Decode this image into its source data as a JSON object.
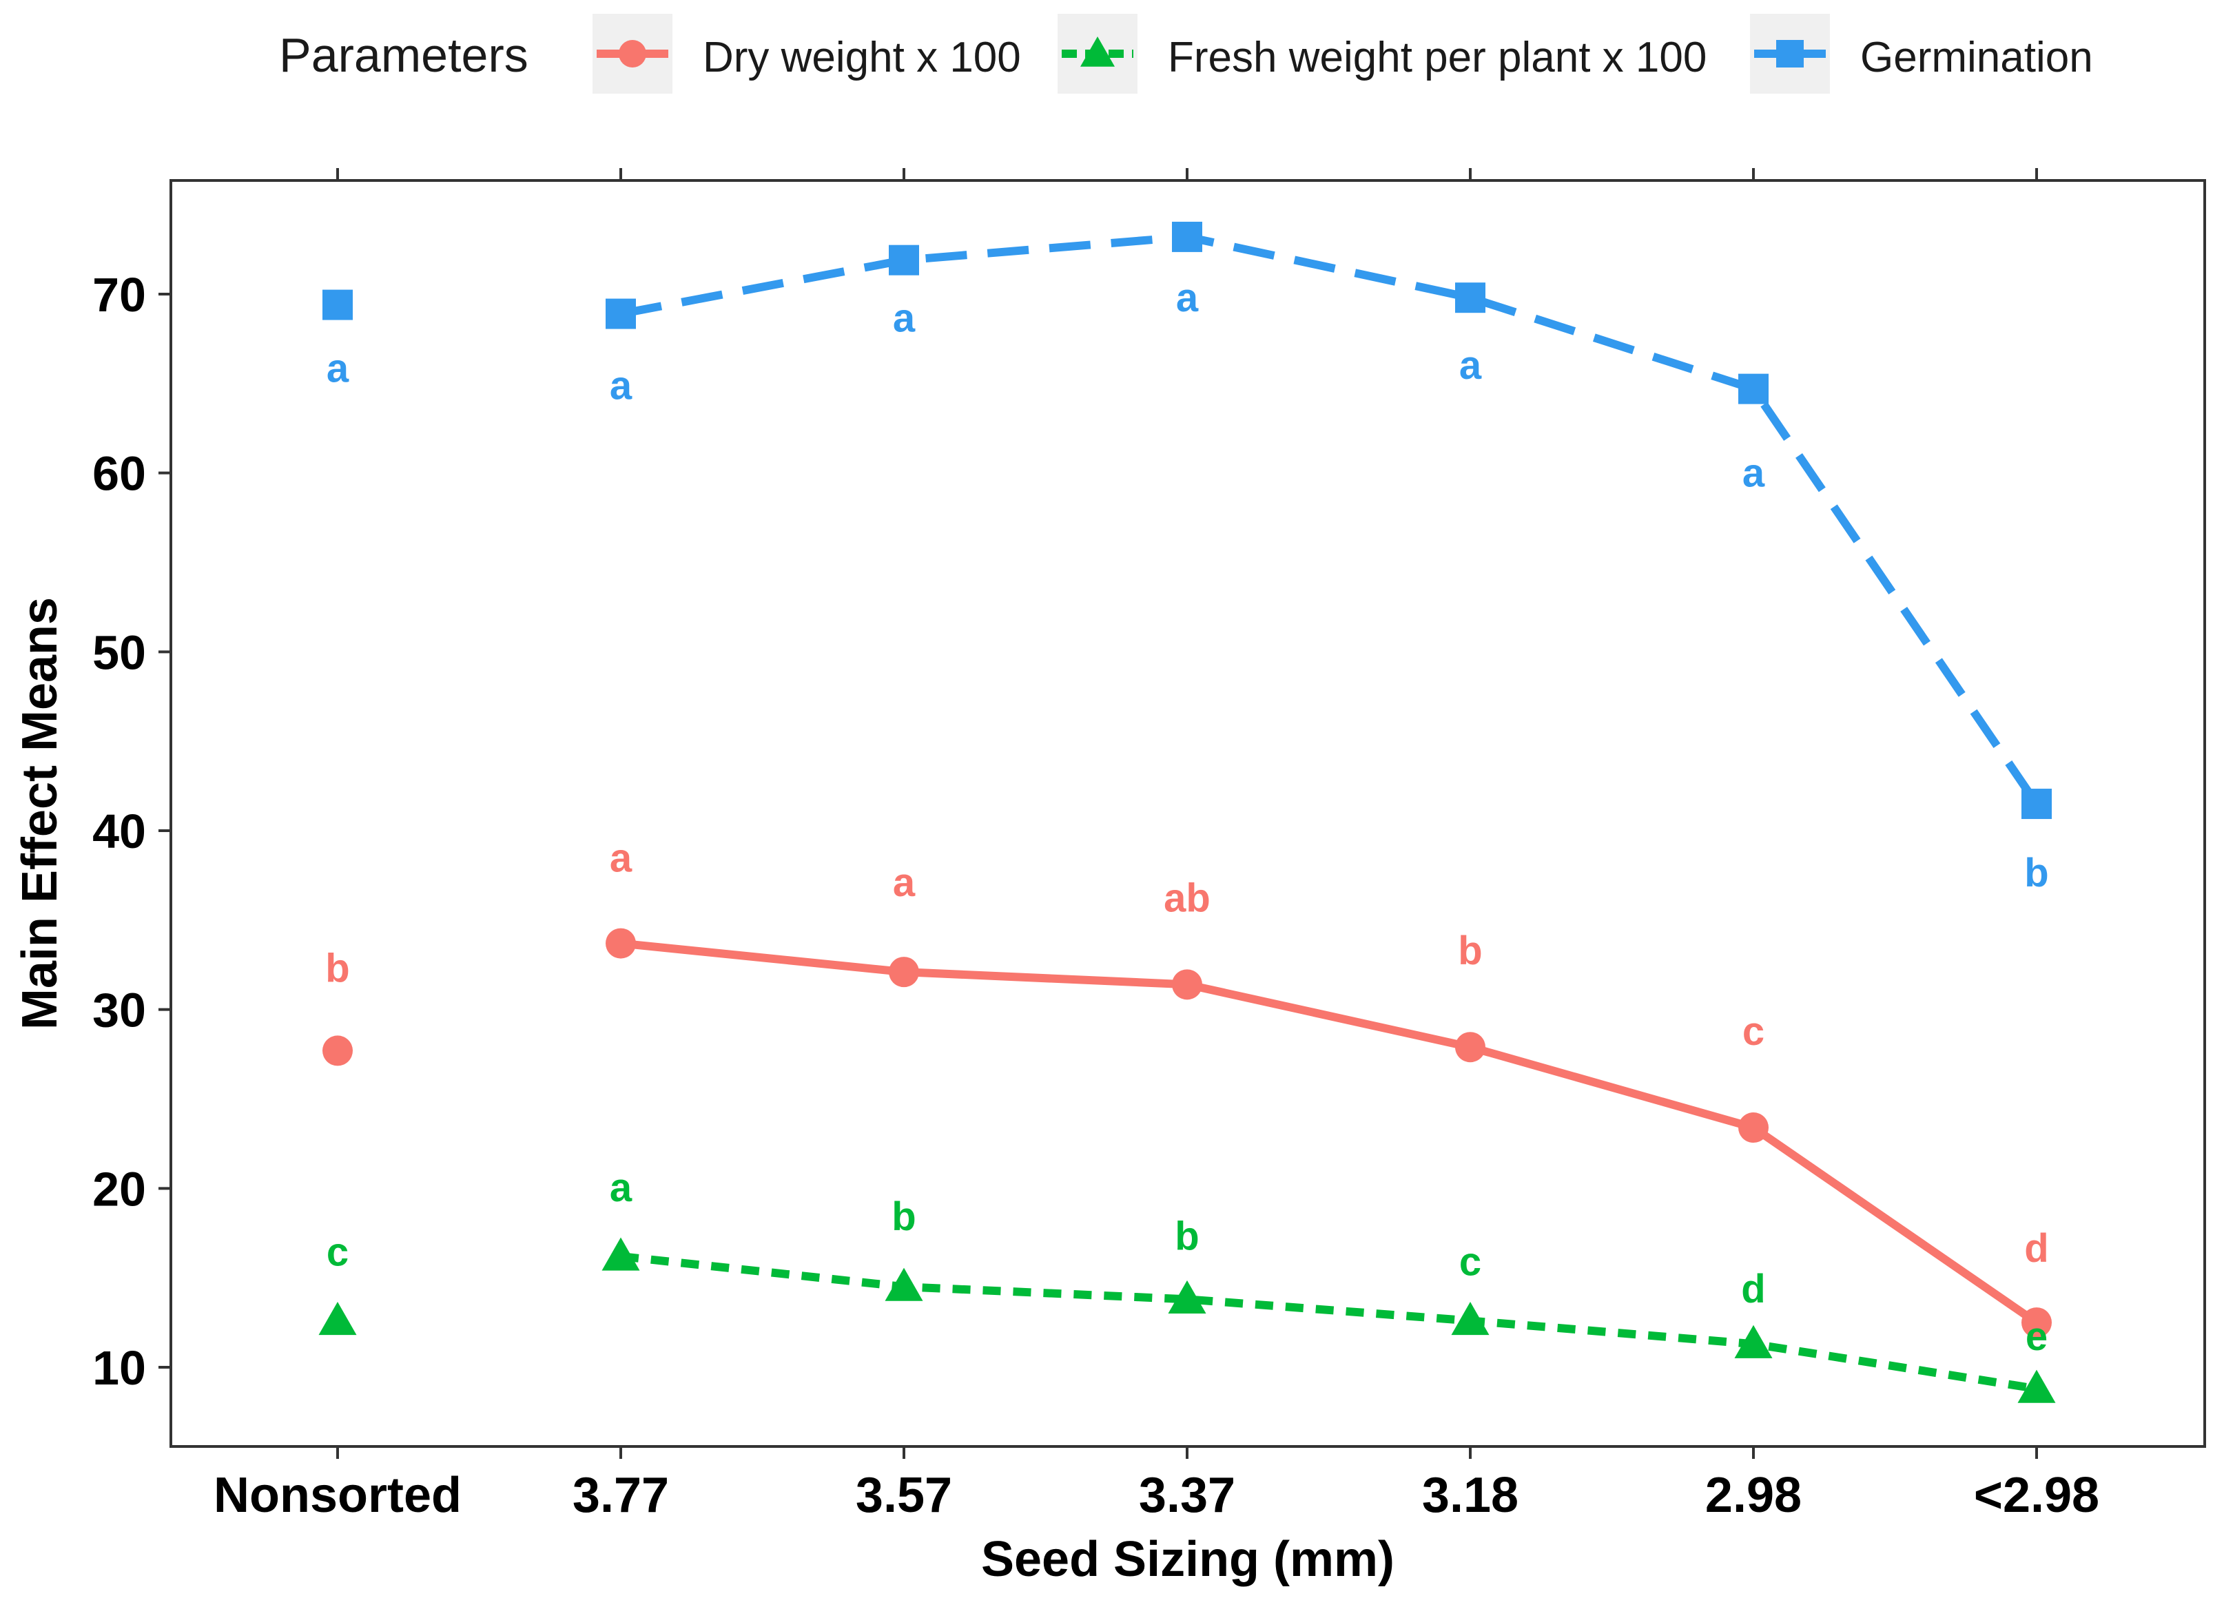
{
  "chart_data": {
    "type": "line",
    "xlabel": "Seed Sizing (mm)",
    "ylabel": "Main Effect Means",
    "categories": [
      "Nonsorted",
      "3.77",
      "3.57",
      "3.37",
      "3.18",
      "2.98",
      "<2.98"
    ],
    "ylim": [
      6,
      75
    ],
    "yticks": [
      10,
      20,
      30,
      40,
      50,
      60,
      70
    ],
    "legend": {
      "title": "Parameters",
      "position": "top"
    },
    "series": [
      {
        "name": "Dry weight x 100",
        "color": "#f8766d",
        "marker": "circle",
        "line": "solid",
        "values": [
          27.7,
          33.7,
          32.1,
          31.4,
          27.9,
          23.4,
          12.5
        ],
        "letters": [
          "b",
          "a",
          "a",
          "ab",
          "b",
          "c",
          "d"
        ]
      },
      {
        "name": "Fresh weight per plant x 100",
        "color": "#00ba38",
        "marker": "triangle",
        "line": "dashed",
        "values": [
          12.6,
          16.2,
          14.5,
          13.8,
          12.6,
          11.3,
          8.8
        ],
        "letters": [
          "c",
          "a",
          "b",
          "b",
          "c",
          "d",
          "e"
        ]
      },
      {
        "name": "Germination",
        "color": "#3399ee",
        "marker": "square",
        "line": "longdash",
        "values": [
          69.4,
          68.9,
          71.9,
          73.2,
          69.8,
          64.7,
          41.5
        ],
        "letters": [
          "a",
          "a",
          "a",
          "a",
          "a",
          "a",
          "b"
        ]
      }
    ]
  }
}
